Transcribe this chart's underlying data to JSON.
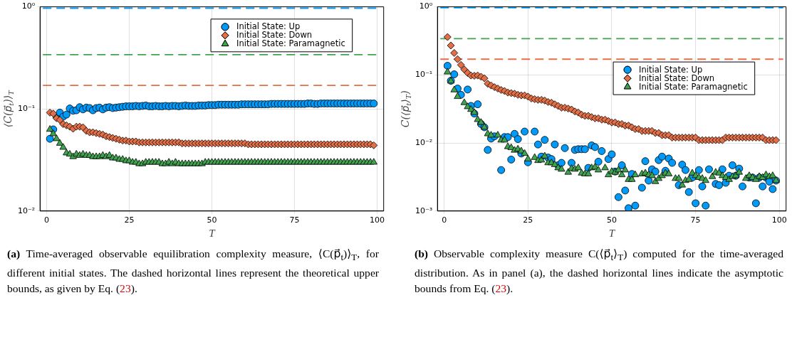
{
  "chart_data": [
    {
      "type": "scatter",
      "xlabel": "T",
      "ylabel": "⟨C(p⃗$_{t}$)⟩$_{T}$",
      "log": "y",
      "grid": true,
      "legend": "top right",
      "xlim": [
        -2,
        102
      ],
      "xticks": [
        0,
        25,
        50,
        75,
        100
      ],
      "ylim": [
        0.01,
        1
      ],
      "yticks": [
        {
          "value": 0.01,
          "label": "10⁻²"
        },
        {
          "value": 0.1,
          "label": "10⁻¹"
        },
        {
          "value": 1,
          "label": "10⁰"
        }
      ],
      "x": [
        1,
        2,
        3,
        4,
        5,
        6,
        7,
        8,
        9,
        10,
        11,
        12,
        13,
        14,
        15,
        16,
        17,
        18,
        19,
        20,
        21,
        22,
        23,
        24,
        25,
        26,
        27,
        28,
        29,
        30,
        31,
        32,
        33,
        34,
        35,
        36,
        37,
        38,
        39,
        40,
        41,
        42,
        43,
        44,
        45,
        46,
        47,
        48,
        49,
        50,
        51,
        52,
        53,
        54,
        55,
        56,
        57,
        58,
        59,
        60,
        61,
        62,
        63,
        64,
        65,
        66,
        67,
        68,
        69,
        70,
        71,
        72,
        73,
        74,
        75,
        76,
        77,
        78,
        79,
        80,
        81,
        82,
        83,
        84,
        85,
        86,
        87,
        88,
        89,
        90,
        91,
        92,
        93,
        94,
        95,
        96,
        97,
        98,
        99
      ],
      "series": [
        {
          "name": "Initial State: Up",
          "color": "#009afa",
          "marker": "circle",
          "values": [
            0.051,
            0.063,
            0.084,
            0.092,
            0.084,
            0.088,
            0.101,
            0.096,
            0.097,
            0.104,
            0.099,
            0.103,
            0.102,
            0.097,
            0.102,
            0.103,
            0.099,
            0.103,
            0.104,
            0.102,
            0.103,
            0.104,
            0.105,
            0.106,
            0.106,
            0.106,
            0.107,
            0.106,
            0.107,
            0.108,
            0.106,
            0.106,
            0.107,
            0.106,
            0.106,
            0.107,
            0.106,
            0.107,
            0.107,
            0.106,
            0.107,
            0.108,
            0.107,
            0.107,
            0.107,
            0.108,
            0.108,
            0.108,
            0.109,
            0.109,
            0.109,
            0.11,
            0.11,
            0.11,
            0.11,
            0.11,
            0.11,
            0.11,
            0.111,
            0.111,
            0.111,
            0.111,
            0.111,
            0.111,
            0.111,
            0.111,
            0.111,
            0.112,
            0.112,
            0.112,
            0.112,
            0.112,
            0.112,
            0.112,
            0.112,
            0.112,
            0.112,
            0.112,
            0.113,
            0.113,
            0.112,
            0.112,
            0.113,
            0.113,
            0.113,
            0.113,
            0.113,
            0.113,
            0.113,
            0.113,
            0.113,
            0.113,
            0.113,
            0.113,
            0.113,
            0.113,
            0.113,
            0.113,
            0.113
          ]
        },
        {
          "name": "Initial State: Down",
          "color": "#e36f47",
          "marker": "diamond",
          "values": [
            0.092,
            0.09,
            0.081,
            0.078,
            0.071,
            0.069,
            0.067,
            0.064,
            0.067,
            0.067,
            0.066,
            0.061,
            0.059,
            0.059,
            0.058,
            0.057,
            0.056,
            0.054,
            0.053,
            0.052,
            0.051,
            0.05,
            0.049,
            0.049,
            0.048,
            0.048,
            0.048,
            0.047,
            0.047,
            0.047,
            0.047,
            0.047,
            0.047,
            0.047,
            0.047,
            0.047,
            0.047,
            0.047,
            0.047,
            0.047,
            0.046,
            0.046,
            0.046,
            0.046,
            0.046,
            0.046,
            0.046,
            0.046,
            0.046,
            0.046,
            0.046,
            0.046,
            0.046,
            0.046,
            0.046,
            0.046,
            0.046,
            0.046,
            0.046,
            0.046,
            0.045,
            0.045,
            0.045,
            0.045,
            0.045,
            0.045,
            0.045,
            0.045,
            0.045,
            0.045,
            0.045,
            0.045,
            0.045,
            0.045,
            0.045,
            0.045,
            0.045,
            0.045,
            0.045,
            0.045,
            0.045,
            0.045,
            0.045,
            0.045,
            0.045,
            0.045,
            0.045,
            0.045,
            0.045,
            0.045,
            0.045,
            0.045,
            0.045,
            0.045,
            0.045,
            0.045,
            0.045,
            0.045,
            0.044
          ]
        },
        {
          "name": "Initial State: Paramagnetic",
          "color": "#3ea44e",
          "marker": "triangle",
          "values": [
            0.063,
            0.057,
            0.051,
            0.046,
            0.042,
            0.037,
            0.036,
            0.034,
            0.036,
            0.035,
            0.036,
            0.035,
            0.035,
            0.034,
            0.034,
            0.034,
            0.035,
            0.034,
            0.035,
            0.033,
            0.033,
            0.032,
            0.032,
            0.031,
            0.031,
            0.03,
            0.03,
            0.029,
            0.029,
            0.03,
            0.03,
            0.03,
            0.03,
            0.03,
            0.029,
            0.029,
            0.03,
            0.029,
            0.03,
            0.029,
            0.029,
            0.029,
            0.029,
            0.029,
            0.029,
            0.029,
            0.029,
            0.03,
            0.03,
            0.03,
            0.03,
            0.03,
            0.03,
            0.03,
            0.03,
            0.03,
            0.03,
            0.03,
            0.03,
            0.03,
            0.03,
            0.03,
            0.03,
            0.03,
            0.03,
            0.03,
            0.03,
            0.03,
            0.03,
            0.03,
            0.03,
            0.03,
            0.03,
            0.03,
            0.03,
            0.03,
            0.03,
            0.03,
            0.03,
            0.03,
            0.03,
            0.03,
            0.03,
            0.03,
            0.03,
            0.03,
            0.03,
            0.03,
            0.03,
            0.03,
            0.03,
            0.03,
            0.03,
            0.03,
            0.03,
            0.03,
            0.03,
            0.03,
            0.03
          ]
        }
      ],
      "ref_lines": [
        {
          "axis": "y",
          "value": 0.97,
          "color": "#009afa",
          "line_style": "dashed"
        },
        {
          "axis": "y",
          "value": 0.34,
          "color": "#3ea44e",
          "line_style": "dashed"
        },
        {
          "axis": "y",
          "value": 0.17,
          "color": "#e36f47",
          "line_style": "dashed"
        }
      ],
      "annotations": [
        "(a) Time-averaged observable equilibration complexity measure, ⟨C(p⃗$_{t}$)⟩$_{T}$, for different initial states. The dashed horizontal lines represent the theoretical upper bounds, as given by Eq. (23)."
      ]
    },
    {
      "type": "scatter",
      "xlabel": "T",
      "ylabel": "C(⟨p⃗$_{t}$⟩$_{T}$)",
      "log": "y",
      "grid": true,
      "legend": "right",
      "xlim": [
        -2,
        102
      ],
      "xticks": [
        0,
        25,
        50,
        75,
        100
      ],
      "ylim": [
        0.001,
        1
      ],
      "yticks": [
        {
          "value": 0.001,
          "label": "10⁻³"
        },
        {
          "value": 0.01,
          "label": "10⁻²"
        },
        {
          "value": 0.1,
          "label": "10⁻¹"
        },
        {
          "value": 1,
          "label": "10⁰"
        }
      ],
      "x": [
        1,
        2,
        3,
        4,
        5,
        6,
        7,
        8,
        9,
        10,
        11,
        12,
        13,
        14,
        15,
        16,
        17,
        18,
        19,
        20,
        21,
        22,
        23,
        24,
        25,
        26,
        27,
        28,
        29,
        30,
        31,
        32,
        33,
        34,
        35,
        36,
        37,
        38,
        39,
        40,
        41,
        42,
        43,
        44,
        45,
        46,
        47,
        48,
        49,
        50,
        51,
        52,
        53,
        54,
        55,
        56,
        57,
        58,
        59,
        60,
        61,
        62,
        63,
        64,
        65,
        66,
        67,
        68,
        69,
        70,
        71,
        72,
        73,
        74,
        75,
        76,
        77,
        78,
        79,
        80,
        81,
        82,
        83,
        84,
        85,
        86,
        87,
        88,
        89,
        90,
        91,
        92,
        93,
        94,
        95,
        96,
        97,
        98,
        99
      ],
      "series": [
        {
          "name": "Initial State: Up",
          "color": "#009afa",
          "marker": "circle",
          "x": [
            1,
            2,
            3,
            4,
            5,
            7,
            8,
            9,
            10,
            11,
            12,
            13,
            14,
            15,
            17,
            18,
            19,
            20,
            21,
            22,
            23,
            24,
            25,
            27,
            28,
            29,
            30,
            31,
            32,
            33,
            34,
            35,
            36,
            38,
            39,
            40,
            41,
            42,
            43,
            44,
            45,
            46,
            47,
            49,
            50,
            51,
            52,
            53,
            54,
            55,
            56,
            57,
            59,
            60,
            61,
            62,
            63,
            64,
            65,
            66,
            67,
            68,
            70,
            71,
            72,
            73,
            74,
            75,
            76,
            77,
            78,
            79,
            81,
            82,
            83,
            84,
            85,
            86,
            87,
            88,
            89,
            91,
            92,
            93,
            94,
            95,
            96,
            97,
            98,
            99
          ],
          "values": [
            0.136,
            0.082,
            0.102,
            0.063,
            0.051,
            0.061,
            0.035,
            0.027,
            0.037,
            0.019,
            0.017,
            0.0079,
            0.0116,
            0.0125,
            0.004,
            0.0122,
            0.0122,
            0.0057,
            0.0136,
            0.0114,
            0.007,
            0.0147,
            0.0052,
            0.0147,
            0.0095,
            0.0063,
            0.0111,
            0.0061,
            0.0058,
            0.0095,
            0.0047,
            0.0051,
            0.0084,
            0.0051,
            0.0079,
            0.0081,
            0.0081,
            0.0081,
            0.0043,
            0.0092,
            0.0087,
            0.0053,
            0.0076,
            0.0058,
            0.0068,
            0.0038,
            0.0016,
            0.0047,
            0.002,
            0.0011,
            0.0035,
            0.0012,
            0.0022,
            0.0054,
            0.0028,
            0.0041,
            0.0038,
            0.0056,
            0.0063,
            0.0039,
            0.0059,
            0.0051,
            0.0024,
            0.0048,
            0.004,
            0.0019,
            0.0031,
            0.0013,
            0.004,
            0.0023,
            0.0012,
            0.0041,
            0.0025,
            0.0024,
            0.0041,
            0.0026,
            0.0033,
            0.0047,
            0.0033,
            0.0042,
            0.0023,
            0.0031,
            0.0031,
            0.0013,
            0.0031,
            0.0023,
            0.0031,
            0.0027,
            0.0021,
            0.0028
          ]
        },
        {
          "name": "Initial State: Down",
          "color": "#e36f47",
          "marker": "diamond",
          "values": [
            0.36,
            0.27,
            0.21,
            0.17,
            0.14,
            0.12,
            0.107,
            0.098,
            0.097,
            0.098,
            0.094,
            0.089,
            0.074,
            0.07,
            0.066,
            0.063,
            0.06,
            0.058,
            0.055,
            0.054,
            0.053,
            0.051,
            0.05,
            0.05,
            0.048,
            0.045,
            0.044,
            0.043,
            0.043,
            0.042,
            0.04,
            0.039,
            0.037,
            0.035,
            0.033,
            0.033,
            0.032,
            0.031,
            0.029,
            0.028,
            0.026,
            0.025,
            0.025,
            0.024,
            0.023,
            0.023,
            0.022,
            0.022,
            0.021,
            0.02,
            0.02,
            0.019,
            0.019,
            0.018,
            0.018,
            0.017,
            0.016,
            0.016,
            0.015,
            0.015,
            0.015,
            0.015,
            0.014,
            0.014,
            0.013,
            0.013,
            0.013,
            0.012,
            0.012,
            0.012,
            0.012,
            0.012,
            0.012,
            0.012,
            0.012,
            0.011,
            0.011,
            0.011,
            0.011,
            0.011,
            0.011,
            0.011,
            0.011,
            0.012,
            0.012,
            0.012,
            0.012,
            0.012,
            0.012,
            0.012,
            0.012,
            0.012,
            0.012,
            0.012,
            0.012,
            0.011,
            0.011,
            0.011,
            0.011
          ]
        },
        {
          "name": "Initial State: Paramagnetic",
          "color": "#3ea44e",
          "marker": "triangle",
          "x": [
            1,
            2,
            3,
            4,
            6,
            7,
            8,
            9,
            10,
            11,
            12,
            13,
            14,
            16,
            17,
            18,
            19,
            20,
            21,
            22,
            23,
            24,
            25,
            27,
            28,
            29,
            30,
            31,
            32,
            33,
            34,
            35,
            37,
            38,
            39,
            40,
            41,
            42,
            43,
            44,
            45,
            46,
            48,
            49,
            50,
            51,
            52,
            53,
            54,
            55,
            56,
            57,
            59,
            60,
            61,
            62,
            63,
            64,
            65,
            66,
            67,
            69,
            70,
            71,
            72,
            73,
            74,
            75,
            76,
            77,
            78,
            80,
            81,
            82,
            83,
            84,
            85,
            86,
            87,
            88,
            90,
            91,
            92,
            93,
            94,
            95,
            96,
            97,
            98,
            99
          ],
          "values": [
            0.11,
            0.081,
            0.06,
            0.048,
            0.039,
            0.034,
            0.031,
            0.028,
            0.022,
            0.02,
            0.017,
            0.0136,
            0.013,
            0.013,
            0.011,
            0.011,
            0.0088,
            0.0085,
            0.0078,
            0.0081,
            0.0076,
            0.007,
            0.0058,
            0.0061,
            0.0055,
            0.0056,
            0.0064,
            0.0051,
            0.0051,
            0.0048,
            0.0043,
            0.0041,
            0.0037,
            0.0042,
            0.0041,
            0.0043,
            0.0036,
            0.0035,
            0.0035,
            0.0043,
            0.0044,
            0.004,
            0.0043,
            0.0034,
            0.0038,
            0.0037,
            0.004,
            0.0034,
            0.004,
            0.0029,
            0.0029,
            0.0034,
            0.0035,
            0.0036,
            0.0034,
            0.0033,
            0.0027,
            0.003,
            0.0033,
            0.0036,
            0.0035,
            0.003,
            0.003,
            0.0024,
            0.0028,
            0.0029,
            0.0036,
            0.0033,
            0.0031,
            0.003,
            0.0028,
            0.0032,
            0.0037,
            0.0036,
            0.0033,
            0.0031,
            0.0029,
            0.0032,
            0.0033,
            0.0037,
            0.003,
            0.0033,
            0.0031,
            0.0029,
            0.0032,
            0.0031,
            0.0034,
            0.0032,
            0.0033,
            0.0028
          ]
        }
      ],
      "ref_lines": [
        {
          "axis": "y",
          "value": 0.97,
          "color": "#009afa",
          "line_style": "dashed"
        },
        {
          "axis": "y",
          "value": 0.34,
          "color": "#3ea44e",
          "line_style": "dashed"
        },
        {
          "axis": "y",
          "value": 0.17,
          "color": "#e36f47",
          "line_style": "dashed"
        }
      ],
      "annotations": [
        "(b) Observable complexity measure C(⟨p⃗$_{t}$⟩$_{T}$) computed for the time-averaged distribution. As in panel (a), the dashed horizontal lines indicate the asymptotic bounds from Eq. (23)."
      ]
    }
  ]
}
